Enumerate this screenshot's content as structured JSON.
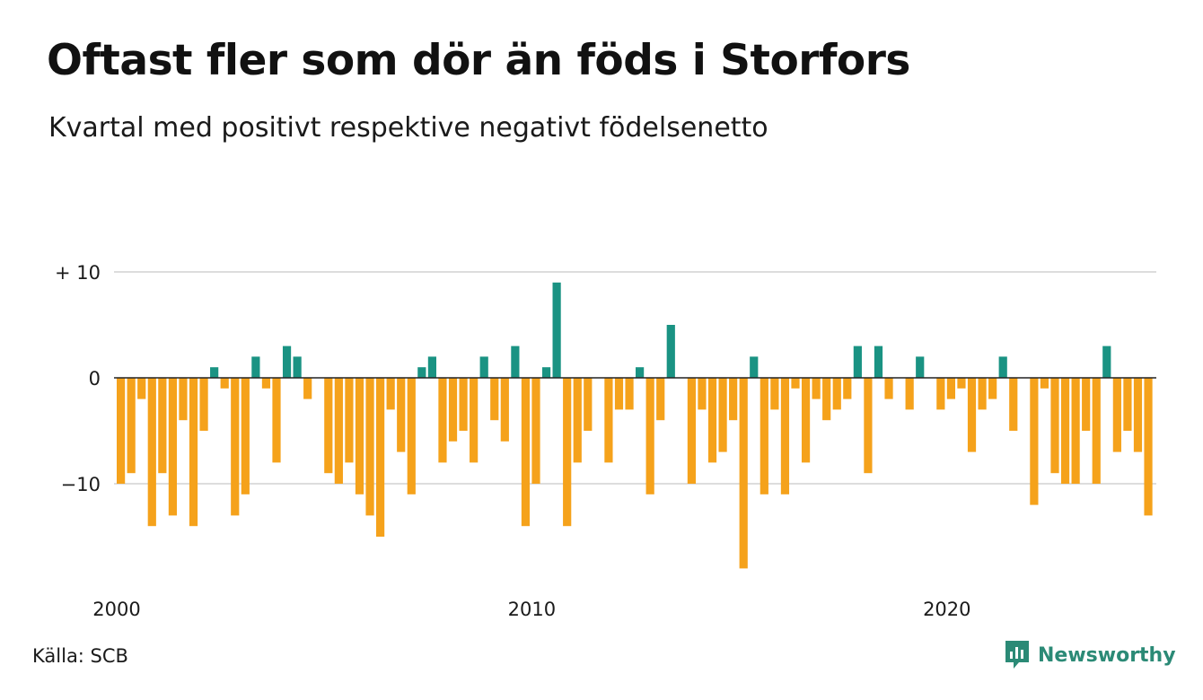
{
  "title": "Oftast fler som dör än föds i Storfors",
  "subtitle": "Kvartal med positivt respektive negativt födelsenetto",
  "source": "Källa: SCB",
  "brand": {
    "name": "Newsworthy",
    "icon": "newsworthy-logo-icon"
  },
  "colors": {
    "positive": "#1a9383",
    "negative": "#f5a21b",
    "grid": "#dddddd",
    "zero": "#222222"
  },
  "chart_data": {
    "type": "bar",
    "x_start": "2000 Q1",
    "x_labels": [
      {
        "label": "2000",
        "index": 0
      },
      {
        "label": "2010",
        "index": 40
      },
      {
        "label": "2020",
        "index": 80
      }
    ],
    "y_ticks": [
      {
        "value": 10,
        "label": "+ 10"
      },
      {
        "value": 0,
        "label": "0"
      },
      {
        "value": -10,
        "label": "−10"
      }
    ],
    "ylim": [
      -18,
      10
    ],
    "grid": true,
    "values": [
      -10,
      -9,
      -2,
      -14,
      -9,
      -13,
      -4,
      -14,
      -5,
      1,
      -1,
      -13,
      -11,
      2,
      -1,
      -8,
      3,
      2,
      -2,
      0,
      -9,
      -10,
      -8,
      -11,
      -13,
      -15,
      -3,
      -7,
      -11,
      1,
      2,
      -8,
      -6,
      -5,
      -8,
      2,
      -4,
      -6,
      3,
      -14,
      -10,
      1,
      9,
      -14,
      -8,
      -5,
      0,
      -8,
      -3,
      -3,
      1,
      -11,
      -4,
      5,
      0,
      -10,
      -3,
      -8,
      -7,
      -4,
      -18,
      2,
      -11,
      -3,
      -11,
      -1,
      -8,
      -2,
      -4,
      -3,
      -2,
      3,
      -9,
      3,
      -2,
      0,
      -3,
      2,
      0,
      -3,
      -2,
      -1,
      -7,
      -3,
      -2,
      2,
      -5,
      0,
      -12,
      -1,
      -9,
      -10,
      -10,
      -5,
      -10,
      3,
      -7,
      -5,
      -7,
      -13
    ]
  }
}
